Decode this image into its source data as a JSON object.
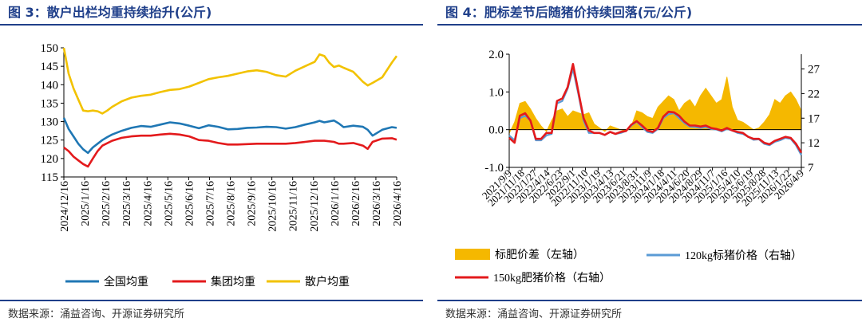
{
  "charts": [
    {
      "title": "图 3：散户出栏均重持续抬升(公斤)",
      "source": "数据来源：涌益咨询、开源证券研究所"
    },
    {
      "title": "图 4：肥标差节后随猪价持续回落(元/公斤)",
      "source": "数据来源：涌益咨询、开源证券研究所"
    }
  ],
  "chart_data": [
    {
      "type": "line",
      "title": "散户出栏均重持续抬升(公斤)",
      "ylim": [
        115,
        150
      ],
      "yticks": [
        115,
        120,
        125,
        130,
        135,
        140,
        145,
        150
      ],
      "xlim": [
        0,
        69
      ],
      "xtick_labels": [
        "2024/12/16",
        "2025/1/16",
        "2025/2/16",
        "2025/3/16",
        "2025/4/16",
        "2025/5/16",
        "2025/6/16",
        "2025/7/16",
        "2025/8/16",
        "2025/9/16",
        "2025/10/16",
        "2025/11/16",
        "2025/12/16",
        "2026/1/16",
        "2026/2/16",
        "2026/3/16",
        "2026/4/16"
      ],
      "series": [
        {
          "name": "全国均重",
          "color": "#1f77b4",
          "x": [
            0,
            1,
            2,
            3,
            4,
            5,
            6,
            7,
            8,
            9,
            10,
            12,
            14,
            16,
            18,
            20,
            22,
            24,
            26,
            28,
            30,
            32,
            34,
            36,
            38,
            40,
            42,
            44,
            46,
            48,
            50,
            52,
            53,
            54,
            56,
            57,
            58,
            60,
            62,
            63,
            64,
            66,
            68,
            69
          ],
          "y": [
            131,
            128,
            126,
            124,
            122.5,
            121.5,
            123,
            124,
            125,
            125.8,
            126.5,
            127.5,
            128.3,
            128.8,
            128.6,
            129.2,
            129.8,
            129.5,
            128.9,
            128.2,
            129,
            128.6,
            127.9,
            128,
            128.3,
            128.4,
            128.6,
            128.5,
            128.1,
            128.5,
            129.2,
            129.8,
            130.2,
            129.8,
            130.3,
            129.5,
            128.5,
            128.9,
            128.6,
            127.8,
            126.2,
            127.8,
            128.5,
            128.3
          ]
        },
        {
          "name": "集团均重",
          "color": "#e31a1c",
          "x": [
            0,
            1,
            2,
            3,
            4,
            5,
            6,
            7,
            8,
            10,
            12,
            14,
            16,
            18,
            20,
            22,
            24,
            26,
            28,
            30,
            32,
            34,
            36,
            38,
            40,
            42,
            44,
            46,
            48,
            50,
            52,
            54,
            56,
            57,
            58,
            60,
            62,
            63,
            64,
            66,
            68,
            69
          ],
          "y": [
            123,
            122,
            120.5,
            119.5,
            118.5,
            117.8,
            120,
            122,
            123.5,
            124.8,
            125.6,
            126,
            126.2,
            126.2,
            126.5,
            126.7,
            126.5,
            126,
            125,
            124.8,
            124.2,
            123.8,
            123.8,
            123.9,
            124,
            124,
            124,
            124,
            124.2,
            124.5,
            124.8,
            124.8,
            124.5,
            124,
            124,
            124.2,
            123.5,
            122.6,
            124.5,
            125.4,
            125.5,
            125.1
          ]
        },
        {
          "name": "散户均重",
          "color": "#f2c200",
          "x": [
            0,
            1,
            2,
            3,
            4,
            5,
            6,
            7,
            8,
            9,
            10,
            12,
            14,
            16,
            18,
            20,
            22,
            24,
            26,
            28,
            30,
            32,
            34,
            36,
            38,
            40,
            42,
            44,
            46,
            48,
            50,
            52,
            53,
            54,
            55,
            56,
            57,
            58,
            60,
            62,
            63,
            64,
            66,
            68,
            69
          ],
          "y": [
            150,
            143,
            139,
            136,
            133,
            132.8,
            133,
            132.8,
            132.2,
            133,
            134,
            135.5,
            136.5,
            137,
            137.3,
            138,
            138.6,
            138.8,
            139.5,
            140.5,
            141.5,
            142,
            142.4,
            143,
            143.6,
            143.9,
            143.5,
            142.6,
            142.2,
            143.8,
            145,
            146.2,
            148.2,
            147.8,
            146,
            144.8,
            145.2,
            144.6,
            143.5,
            140.8,
            139.8,
            140.5,
            142,
            146,
            147.8
          ]
        }
      ]
    },
    {
      "type": "line",
      "title": "肥标差节后随猪价持续回落(元/公斤)",
      "y_left_lim": [
        -1.0,
        2.0
      ],
      "y_left_ticks": [
        "-1.0",
        "0.0",
        "1.0",
        "2.0"
      ],
      "y_right_lim": [
        7,
        30
      ],
      "y_right_ticks": [
        "7",
        "12",
        "17",
        "22",
        "27"
      ],
      "xlim": [
        0,
        55
      ],
      "xtick_labels": [
        "2021/9/9",
        "2021/11/18",
        "2022/1/27",
        "2022/4/14",
        "2022/6/23",
        "2022/9/1",
        "2022/11/10",
        "2023/1/19",
        "2023/4/13",
        "2023/6/21",
        "2023/8/31",
        "2023/11/9",
        "2024/1/18",
        "2024/4/11",
        "2024/6/20",
        "2024/8/29",
        "2024/11/7",
        "2025/1/16",
        "2025/4/10",
        "2025/6/19",
        "2025/8/28",
        "2025/11/13",
        "2026/1/22",
        "2026/4/9"
      ],
      "series": [
        {
          "name": "标肥价差（左轴）",
          "color": "#f5b800",
          "kind": "area",
          "axis": "left",
          "x": [
            0,
            1,
            2,
            3,
            4,
            5,
            6,
            7,
            8,
            9,
            10,
            11,
            12,
            13,
            14,
            15,
            16,
            17,
            18,
            19,
            20,
            21,
            22,
            23,
            24,
            25,
            26,
            27,
            28,
            29,
            30,
            31,
            32,
            33,
            34,
            35,
            36,
            37,
            38,
            39,
            40,
            41,
            42,
            43,
            44,
            45,
            46,
            47,
            48,
            49,
            50,
            51,
            52,
            53,
            54,
            55
          ],
          "y": [
            -0.1,
            0.2,
            0.7,
            0.75,
            0.55,
            0.3,
            0.1,
            -0.05,
            0.25,
            0.5,
            0.55,
            0.35,
            0.5,
            0.45,
            0.4,
            0.45,
            0.15,
            0.05,
            -0.05,
            0.1,
            0.05,
            0.0,
            -0.05,
            0.1,
            0.5,
            0.45,
            0.35,
            0.3,
            0.6,
            0.75,
            0.9,
            0.8,
            0.5,
            0.7,
            0.8,
            0.6,
            0.9,
            1.1,
            0.9,
            0.7,
            0.8,
            1.4,
            0.6,
            0.25,
            0.2,
            0.1,
            0.0,
            0.05,
            0.2,
            0.4,
            0.8,
            0.7,
            0.9,
            1.0,
            0.8,
            0.5
          ]
        },
        {
          "name": "120kg标猪价格（右轴）",
          "color": "#5b9bd5",
          "axis": "right",
          "x": [
            0,
            1,
            2,
            3,
            4,
            5,
            6,
            7,
            8,
            9,
            10,
            11,
            12,
            13,
            14,
            15,
            16,
            17,
            18,
            19,
            20,
            21,
            22,
            23,
            24,
            25,
            26,
            27,
            28,
            29,
            30,
            31,
            32,
            33,
            34,
            35,
            36,
            37,
            38,
            39,
            40,
            41,
            42,
            43,
            44,
            45,
            46,
            47,
            48,
            49,
            50,
            51,
            52,
            53,
            54,
            55
          ],
          "y": [
            13.5,
            12.5,
            17,
            17.5,
            16.5,
            12.5,
            12.5,
            13.5,
            13.8,
            20,
            20.5,
            23,
            27,
            22,
            16.5,
            14,
            14,
            14,
            13.6,
            14.2,
            13.8,
            14,
            14.4,
            15.5,
            16.3,
            15.2,
            14.2,
            14,
            14.8,
            17,
            17.8,
            18,
            17,
            16,
            15.3,
            15.2,
            15,
            15.2,
            14.8,
            14.7,
            14.3,
            14.8,
            14.5,
            14,
            13.8,
            13.2,
            12.6,
            12.7,
            11.8,
            11.5,
            12.2,
            12.5,
            13,
            12.8,
            11.5,
            9.5
          ]
        },
        {
          "name": "150kg肥猪价格（右轴）",
          "color": "#e31a1c",
          "axis": "right",
          "x": [
            0,
            1,
            2,
            3,
            4,
            5,
            6,
            7,
            8,
            9,
            10,
            11,
            12,
            13,
            14,
            15,
            16,
            17,
            18,
            19,
            20,
            21,
            22,
            23,
            24,
            25,
            26,
            27,
            28,
            29,
            30,
            31,
            32,
            33,
            34,
            35,
            36,
            37,
            38,
            39,
            40,
            41,
            42,
            43,
            44,
            45,
            46,
            47,
            48,
            49,
            50,
            51,
            52,
            53,
            54,
            55
          ],
          "y": [
            13,
            12,
            17.5,
            18,
            16.5,
            12.8,
            12.8,
            14,
            14,
            20.5,
            21,
            23.3,
            28,
            22.5,
            17,
            14.5,
            14,
            14,
            13.6,
            14.2,
            13.8,
            14.2,
            14.4,
            15.7,
            16.4,
            15.5,
            14.5,
            14.2,
            15,
            17.3,
            18.3,
            18.2,
            17.5,
            16.3,
            15.5,
            15.5,
            15.3,
            15.5,
            15,
            14.8,
            14.5,
            15,
            14.5,
            14.2,
            14,
            13.2,
            12.8,
            12.8,
            12,
            11.7,
            12.4,
            12.8,
            13.2,
            13,
            11.8,
            10
          ]
        }
      ]
    }
  ]
}
